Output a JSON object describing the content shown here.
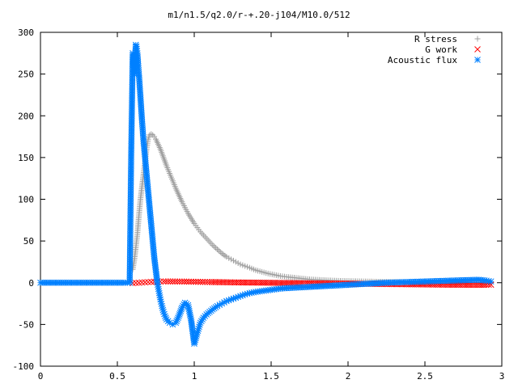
{
  "chart_data": {
    "type": "scatter",
    "title": "m1/n1.5/q2.0/r-+.20-j104/M10.0/512",
    "xlabel": "",
    "ylabel": "",
    "xlim": [
      0,
      3
    ],
    "ylim": [
      -100,
      300
    ],
    "xticks": [
      "0",
      "0.5",
      "1",
      "1.5",
      "2",
      "2.5",
      "3"
    ],
    "yticks": [
      "-100",
      "-50",
      "0",
      "50",
      "100",
      "150",
      "200",
      "250",
      "300"
    ],
    "grid": false,
    "legend_position": "top-right",
    "series": [
      {
        "name": "R stress",
        "marker": "plus",
        "color": "#a0a0a0",
        "x": [
          0.6,
          0.61,
          0.62,
          0.63,
          0.64,
          0.65,
          0.66,
          0.67,
          0.68,
          0.69,
          0.7,
          0.71,
          0.72,
          0.73,
          0.74,
          0.75,
          0.76,
          0.78,
          0.8,
          0.82,
          0.84,
          0.86,
          0.88,
          0.9,
          0.92,
          0.94,
          0.96,
          0.98,
          1.0,
          1.02,
          1.04,
          1.06,
          1.08,
          1.1,
          1.12,
          1.15,
          1.18,
          1.21,
          1.24,
          1.27,
          1.3,
          1.33,
          1.36,
          1.4,
          1.44,
          1.48,
          1.52,
          1.56,
          1.6,
          1.65,
          1.7,
          1.75,
          1.8,
          1.85,
          1.9,
          1.95,
          2.0,
          2.05,
          2.1,
          2.15,
          2.2,
          2.25,
          2.3,
          2.35,
          2.4,
          2.45,
          2.5,
          2.55,
          2.6,
          2.65,
          2.7,
          2.75,
          2.8,
          2.85,
          2.9,
          2.93
        ],
        "y": [
          16,
          27,
          42,
          58,
          80,
          100,
          115,
          130,
          145,
          160,
          172,
          177,
          178,
          177,
          175,
          172,
          168,
          160,
          150,
          140,
          131,
          122,
          113,
          105,
          97,
          90,
          83,
          77,
          71,
          66,
          61,
          57,
          53,
          49,
          45,
          40,
          35,
          31,
          28,
          25,
          22,
          20,
          18,
          15,
          13,
          11,
          9.5,
          8,
          7,
          6,
          5,
          4,
          3.5,
          3,
          2.6,
          2.2,
          2,
          1.8,
          1.6,
          1.4,
          1.2,
          1,
          0.9,
          0.8,
          0.7,
          0.6,
          0.5,
          0.5,
          0.4,
          0.4,
          0.3,
          0.3,
          0.3,
          0.2,
          0.2,
          0.2
        ]
      },
      {
        "name": "G work",
        "marker": "cross",
        "color": "#ff0000",
        "x": [
          0.6,
          0.62,
          0.64,
          0.66,
          0.68,
          0.7,
          0.72,
          0.74,
          0.76,
          0.78,
          0.8,
          0.83,
          0.86,
          0.89,
          0.92,
          0.95,
          0.98,
          1.01,
          1.04,
          1.07,
          1.1,
          1.14,
          1.18,
          1.22,
          1.26,
          1.3,
          1.35,
          1.4,
          1.45,
          1.5,
          1.55,
          1.6,
          1.65,
          1.7,
          1.75,
          1.8,
          1.85,
          1.9,
          1.95,
          2.0,
          2.05,
          2.1,
          2.15,
          2.2,
          2.25,
          2.3,
          2.35,
          2.4,
          2.45,
          2.5,
          2.55,
          2.6,
          2.65,
          2.7,
          2.75,
          2.8,
          2.85,
          2.9,
          2.93
        ],
        "y": [
          -0.5,
          -0.2,
          0,
          0.3,
          0.5,
          0.8,
          1.0,
          1.2,
          1.3,
          1.4,
          1.5,
          1.5,
          1.5,
          1.4,
          1.4,
          1.3,
          1.2,
          1.1,
          1.0,
          0.9,
          0.8,
          0.7,
          0.6,
          0.5,
          0.4,
          0.3,
          0.2,
          0.1,
          0,
          -0.1,
          -0.2,
          -0.3,
          -0.4,
          -0.5,
          -0.6,
          -0.7,
          -0.8,
          -0.9,
          -1.0,
          -1.1,
          -1.2,
          -1.3,
          -1.4,
          -1.5,
          -1.6,
          -1.7,
          -1.8,
          -1.9,
          -2.0,
          -2.1,
          -2.2,
          -2.3,
          -2.4,
          -2.4,
          -2.5,
          -2.6,
          -2.6,
          -2.5,
          -2.4
        ]
      },
      {
        "name": "Acoustic flux",
        "marker": "star",
        "color": "#0080ff",
        "x": [
          0.0,
          0.05,
          0.1,
          0.15,
          0.2,
          0.25,
          0.3,
          0.35,
          0.4,
          0.45,
          0.5,
          0.55,
          0.58,
          0.59,
          0.6,
          0.61,
          0.62,
          0.625,
          0.63,
          0.635,
          0.64,
          0.65,
          0.66,
          0.67,
          0.68,
          0.69,
          0.7,
          0.71,
          0.72,
          0.73,
          0.74,
          0.75,
          0.76,
          0.77,
          0.78,
          0.79,
          0.8,
          0.81,
          0.82,
          0.84,
          0.86,
          0.88,
          0.9,
          0.92,
          0.94,
          0.96,
          0.98,
          1.0,
          1.02,
          1.04,
          1.06,
          1.08,
          1.1,
          1.12,
          1.15,
          1.18,
          1.21,
          1.24,
          1.27,
          1.3,
          1.33,
          1.36,
          1.4,
          1.44,
          1.48,
          1.52,
          1.56,
          1.6,
          1.65,
          1.7,
          1.75,
          1.8,
          1.85,
          1.9,
          1.95,
          2.0,
          2.05,
          2.1,
          2.15,
          2.2,
          2.25,
          2.3,
          2.35,
          2.4,
          2.45,
          2.5,
          2.55,
          2.6,
          2.65,
          2.7,
          2.75,
          2.8,
          2.85,
          2.9,
          2.93
        ],
        "y": [
          0,
          0,
          0,
          0,
          0,
          0,
          0,
          0,
          0,
          0,
          0,
          0,
          0,
          155,
          275,
          250,
          285,
          283,
          275,
          262,
          250,
          223,
          195,
          170,
          150,
          130,
          110,
          90,
          70,
          50,
          30,
          15,
          0,
          -10,
          -20,
          -28,
          -35,
          -40,
          -44,
          -48,
          -50,
          -48,
          -40,
          -30,
          -24,
          -27,
          -45,
          -73,
          -60,
          -48,
          -42,
          -38,
          -35,
          -32,
          -28,
          -25,
          -22,
          -20,
          -18,
          -16,
          -14,
          -12.5,
          -11,
          -10,
          -9,
          -8,
          -7,
          -6.5,
          -6,
          -5.5,
          -5,
          -4.5,
          -4,
          -3.5,
          -3,
          -2.5,
          -2,
          -1.5,
          -1,
          -0.5,
          0,
          0.3,
          0.6,
          0.9,
          1.2,
          1.5,
          1.8,
          2.1,
          2.4,
          2.7,
          3.0,
          3.3,
          3.5,
          2.5,
          1.5
        ]
      }
    ]
  }
}
